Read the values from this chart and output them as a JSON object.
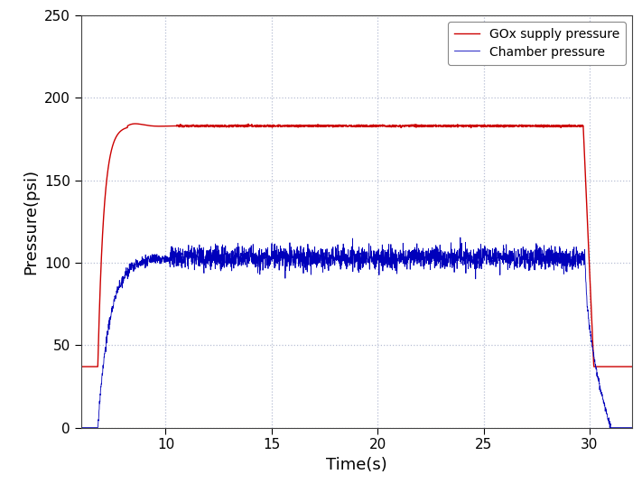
{
  "title": "",
  "xlabel": "Time(s)",
  "ylabel": "Pressure(psi)",
  "xlim": [
    6,
    32
  ],
  "ylim": [
    0,
    250
  ],
  "xticks": [
    10,
    15,
    20,
    25,
    30
  ],
  "yticks": [
    0,
    50,
    100,
    150,
    200,
    250
  ],
  "gox_color": "#cc0000",
  "chamber_color": "#0000bb",
  "legend_labels": [
    "GOx supply pressure",
    "Chamber pressure"
  ],
  "background_color": "#ffffff",
  "grid_color": "#b0b8d0",
  "figsize": [
    7.11,
    5.46
  ],
  "dpi": 100,
  "t_start": 6.0,
  "t_end": 32.0,
  "gox_rise_start": 6.8,
  "gox_rise_end": 8.2,
  "gox_peak_start": 10.5,
  "gox_peak_end": 29.7,
  "gox_drop_end": 30.2,
  "gox_initial": 37,
  "gox_peak": 183,
  "gox_after_drop": 37,
  "chamber_rise_start": 6.8,
  "chamber_rise_end": 10.2,
  "chamber_steady_end": 29.8,
  "chamber_drop_end": 31.0,
  "chamber_initial": 0,
  "chamber_steady": 103,
  "chamber_noise_std": 3.5,
  "chamber_final": 0,
  "num_points": 3000,
  "gox_linewidth": 1.0,
  "chamber_linewidth": 0.6
}
